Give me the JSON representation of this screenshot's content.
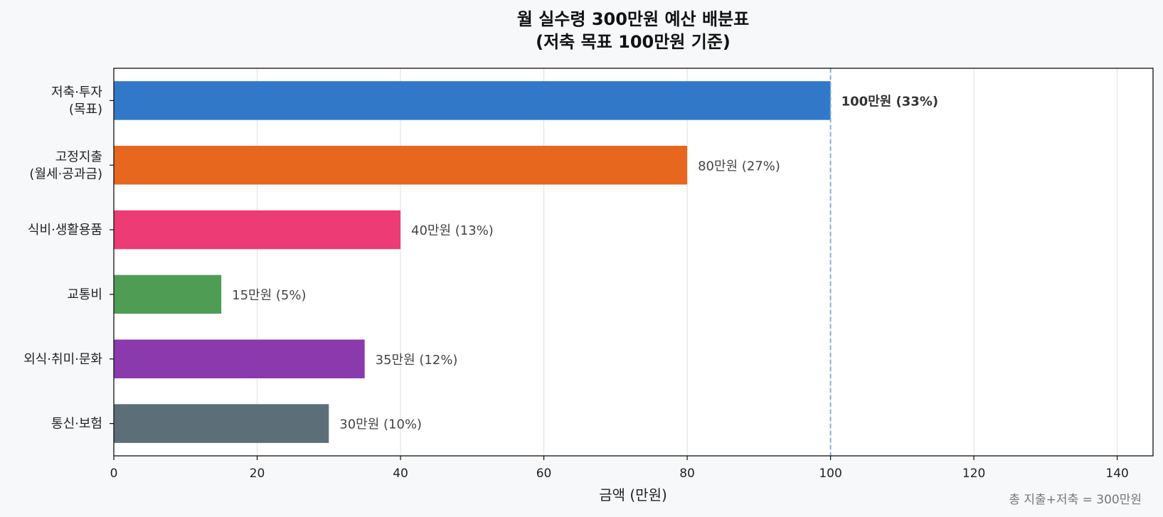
{
  "chart_data": {
    "type": "bar",
    "orientation": "horizontal",
    "title": [
      "월 실수령 300만원 예산 배분표",
      "(저축 목표 100만원 기준)"
    ],
    "categories": [
      [
        "저축·투자",
        "(목표)"
      ],
      [
        "고정지출",
        "(월세·공과금)"
      ],
      [
        "식비·생활용품"
      ],
      [
        "교통비"
      ],
      [
        "외식·취미·문화"
      ],
      [
        "통신·보험"
      ]
    ],
    "values": [
      100,
      80,
      40,
      15,
      35,
      30
    ],
    "bar_labels": [
      "100만원 (33%)",
      "80만원 (27%)",
      "40만원 (13%)",
      "15만원 (5%)",
      "35만원 (12%)",
      "30만원 (10%)"
    ],
    "bar_colors": [
      "#3278c8",
      "#e8671f",
      "#ec3b75",
      "#4f9d54",
      "#8a3aad",
      "#5c6e78"
    ],
    "highlight_index": 0,
    "xlabel": "금액 (만원)",
    "xlim": [
      0,
      145
    ],
    "xticks": [
      0,
      20,
      40,
      60,
      80,
      100,
      120,
      140
    ],
    "reference_line": {
      "x": 100,
      "color": "#7aa6dd"
    },
    "grid": "x",
    "footnote": "총 지출+저축 = 300만원"
  }
}
